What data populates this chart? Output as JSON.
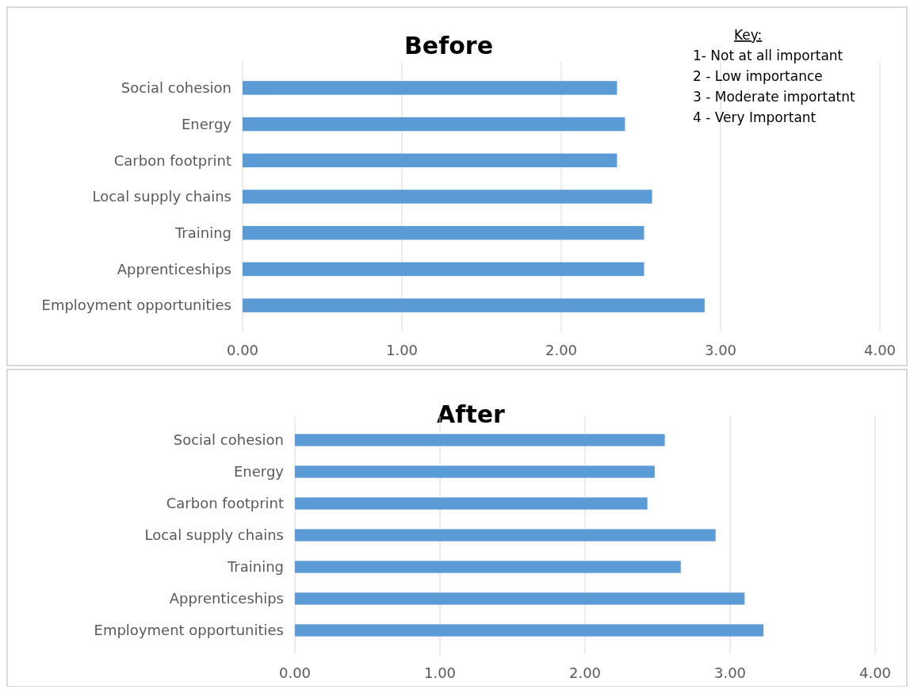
{
  "chart_data": [
    {
      "type": "bar",
      "orientation": "horizontal",
      "title": "Before",
      "categories": [
        "Social cohesion",
        "Energy",
        "Carbon footprint",
        "Local supply chains",
        "Training",
        "Apprenticeships",
        "Employment opportunities"
      ],
      "values": [
        2.35,
        2.4,
        2.35,
        2.57,
        2.52,
        2.52,
        2.9
      ],
      "color": "#5b9bd5",
      "xlim": [
        0,
        4
      ],
      "xticks": [
        {
          "value": 0,
          "label": "0.00"
        },
        {
          "value": 1,
          "label": "1.00"
        },
        {
          "value": 2,
          "label": "2.00"
        },
        {
          "value": 3,
          "label": "3.00"
        },
        {
          "value": 4,
          "label": "4.00"
        }
      ],
      "grid": "x",
      "annotations": [
        "Key:",
        "1-  Not at all important",
        "2 - Low importance",
        "3 - Moderate importatnt",
        "4 - Very Important"
      ]
    },
    {
      "type": "bar",
      "orientation": "horizontal",
      "title": "After",
      "categories": [
        "Social cohesion",
        "Energy",
        "Carbon footprint",
        "Local supply chains",
        "Training",
        "Apprenticeships",
        "Employment opportunities"
      ],
      "values": [
        2.55,
        2.48,
        2.43,
        2.9,
        2.66,
        3.1,
        3.23
      ],
      "color": "#5b9bd5",
      "xlim": [
        0,
        4
      ],
      "xticks": [
        {
          "value": 0,
          "label": "0.00"
        },
        {
          "value": 1,
          "label": "1.00"
        },
        {
          "value": 2,
          "label": "2.00"
        },
        {
          "value": 3,
          "label": "3.00"
        },
        {
          "value": 4,
          "label": "4.00"
        }
      ],
      "grid": "x"
    }
  ]
}
